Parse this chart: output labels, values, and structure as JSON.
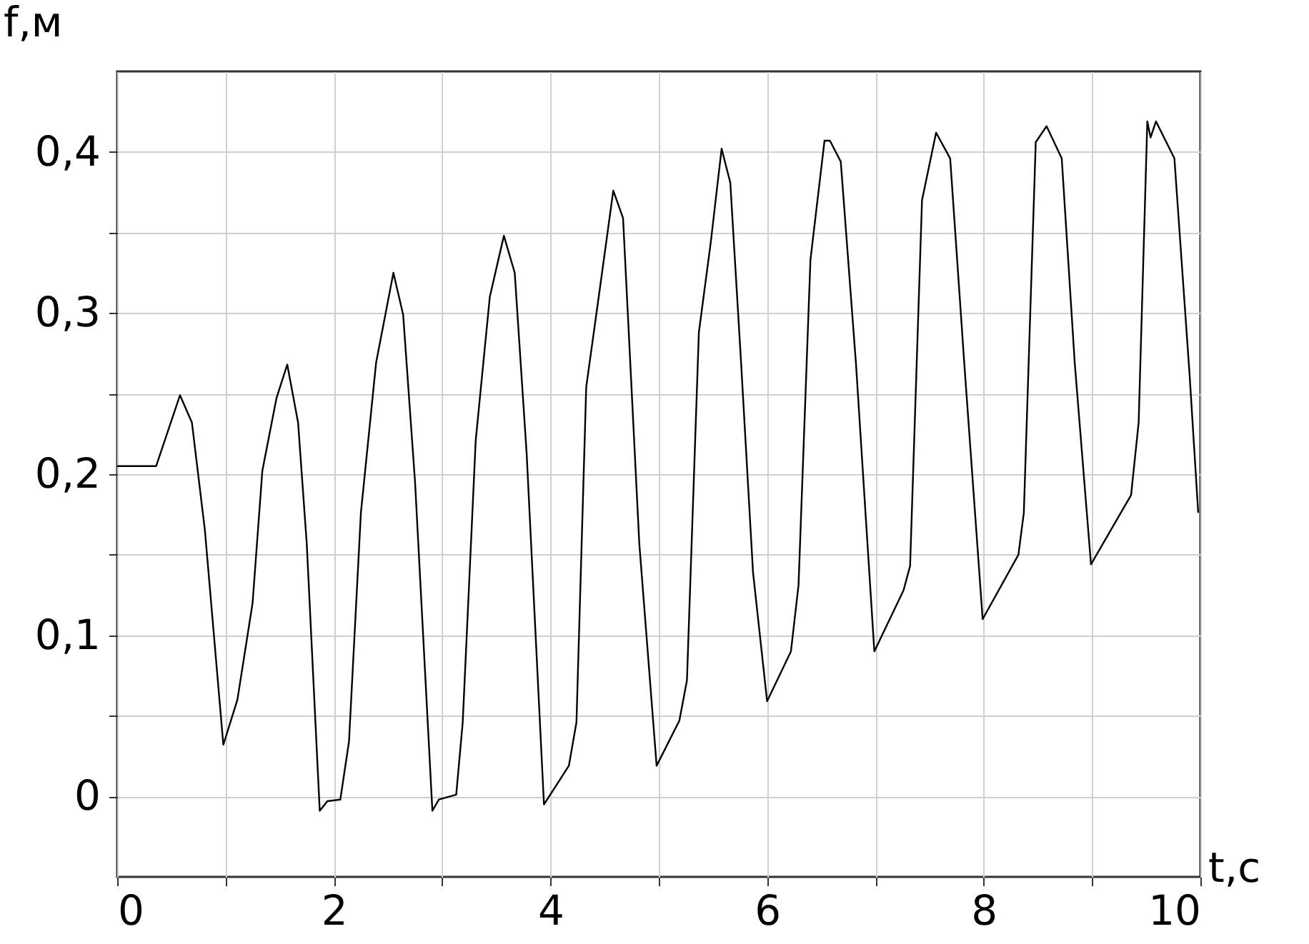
{
  "chart_data": {
    "type": "line",
    "xlabel": "t,c",
    "ylabel": "f,м",
    "xlim": [
      0,
      10
    ],
    "ylim": [
      -0.05,
      0.45
    ],
    "xticks": [
      0,
      {
        "value": 1,
        "label": null
      },
      2,
      {
        "value": 3,
        "label": null
      },
      4,
      {
        "value": 5,
        "label": null
      },
      6,
      {
        "value": 7,
        "label": null
      },
      8,
      {
        "value": 9,
        "label": null
      },
      10
    ],
    "yticks": [
      {
        "value": 0,
        "label": "0"
      },
      {
        "value": 0.05,
        "label": null
      },
      {
        "value": 0.1,
        "label": "0,1"
      },
      {
        "value": 0.15,
        "label": null
      },
      {
        "value": 0.2,
        "label": "0,2"
      },
      {
        "value": 0.25,
        "label": null
      },
      {
        "value": 0.3,
        "label": "0,3"
      },
      {
        "value": 0.35,
        "label": null
      },
      {
        "value": 0.4,
        "label": "0,4"
      }
    ],
    "grid": true,
    "line_style": "solid",
    "marker": "none",
    "x": [
      0,
      0.36,
      0.58,
      0.69,
      0.81,
      0.98,
      1.11,
      1.25,
      1.34,
      1.47,
      1.57,
      1.67,
      1.75,
      1.87,
      1.94,
      2.06,
      2.14,
      2.25,
      2.39,
      2.55,
      2.64,
      2.75,
      2.91,
      2.97,
      3.13,
      3.19,
      3.31,
      3.44,
      3.57,
      3.67,
      3.78,
      3.94,
      4.17,
      4.24,
      4.33,
      4.47,
      4.58,
      4.67,
      4.82,
      4.98,
      5.19,
      5.26,
      5.37,
      5.48,
      5.58,
      5.66,
      5.76,
      5.87,
      6.0,
      6.22,
      6.29,
      6.4,
      6.53,
      6.58,
      6.68,
      6.82,
      6.99,
      7.26,
      7.32,
      7.43,
      7.56,
      7.69,
      7.82,
      7.99,
      8.32,
      8.37,
      8.48,
      8.58,
      8.72,
      8.84,
      8.99,
      9.36,
      9.43,
      9.51,
      9.54,
      9.59,
      9.76,
      9.9,
      9.98
    ],
    "series": [
      {
        "color": "#000000",
        "values": [
          0.205,
          0.205,
          0.249,
          0.232,
          0.165,
          0.032,
          0.06,
          0.12,
          0.202,
          0.247,
          0.268,
          0.232,
          0.157,
          -0.009,
          -0.003,
          -0.002,
          0.034,
          0.176,
          0.269,
          0.325,
          0.299,
          0.195,
          -0.009,
          -0.002,
          0.001,
          0.046,
          0.221,
          0.31,
          0.348,
          0.325,
          0.213,
          -0.005,
          0.019,
          0.046,
          0.254,
          0.322,
          0.376,
          0.359,
          0.157,
          0.019,
          0.047,
          0.072,
          0.288,
          0.344,
          0.402,
          0.381,
          0.269,
          0.139,
          0.059,
          0.09,
          0.131,
          0.333,
          0.407,
          0.407,
          0.394,
          0.269,
          0.09,
          0.128,
          0.143,
          0.37,
          0.412,
          0.396,
          0.269,
          0.11,
          0.15,
          0.176,
          0.406,
          0.416,
          0.396,
          0.269,
          0.144,
          0.187,
          0.232,
          0.419,
          0.409,
          0.419,
          0.396,
          0.262,
          0.176
        ]
      }
    ]
  }
}
